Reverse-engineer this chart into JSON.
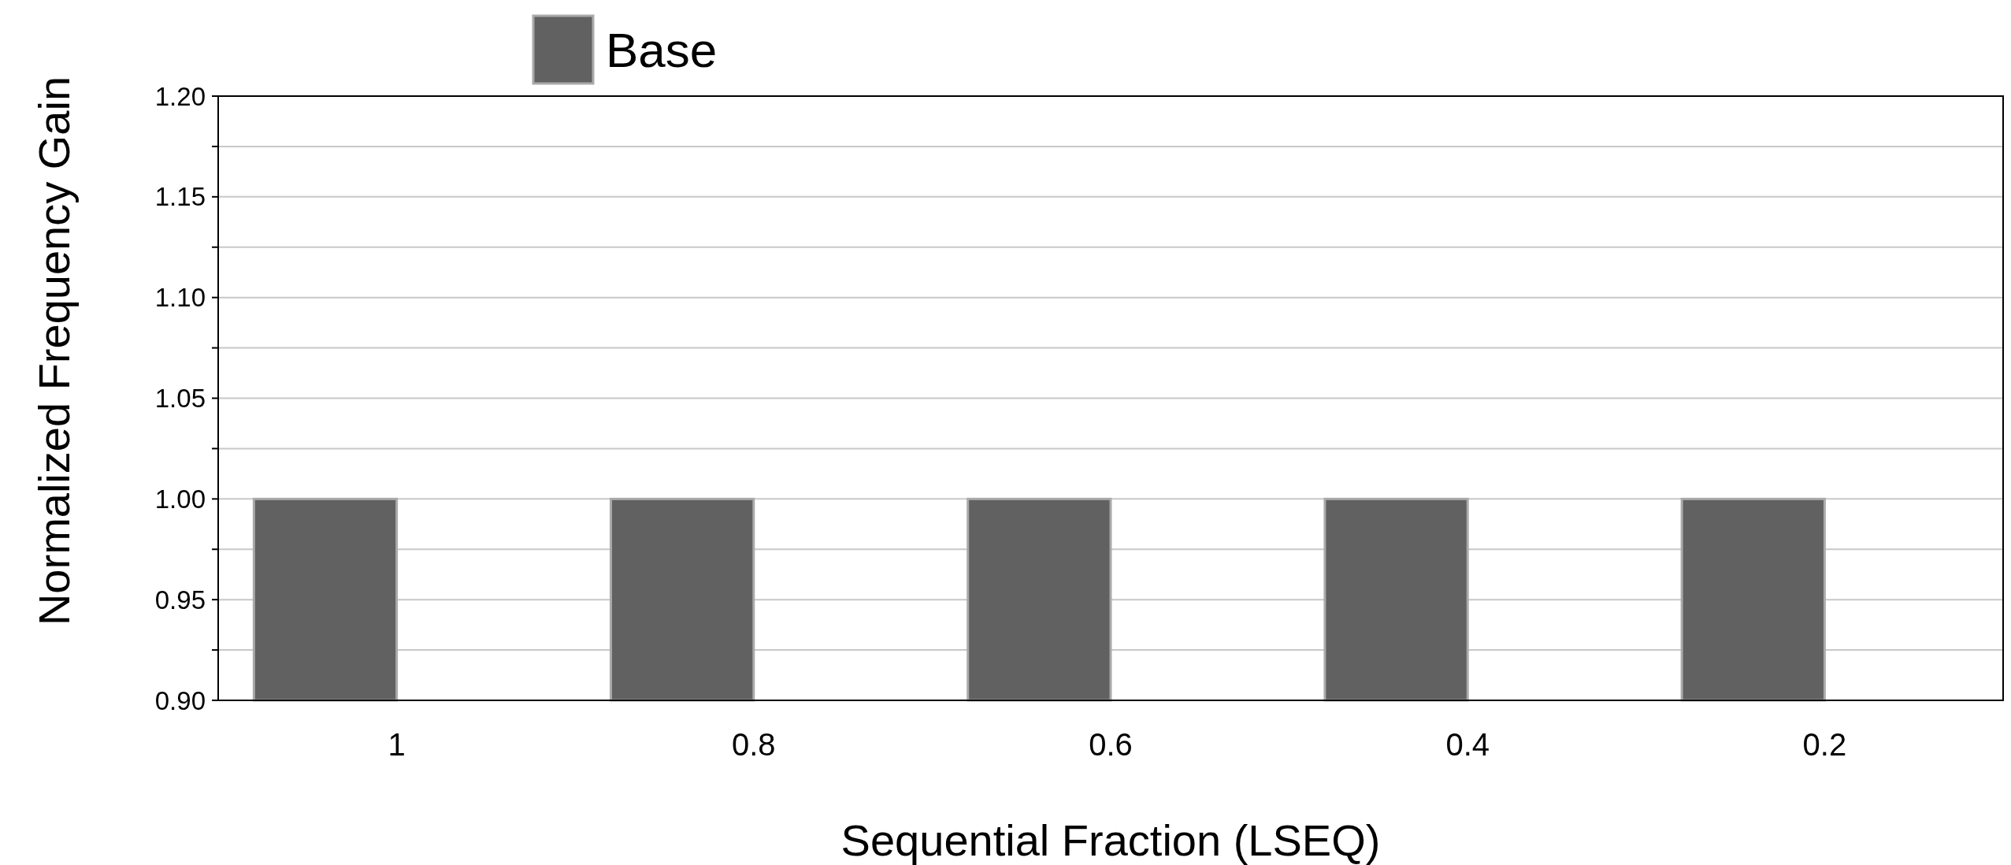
{
  "chart_data": {
    "type": "bar",
    "xlabel": "Sequential Fraction (LSEQ)",
    "ylabel": "Normalized Frequency Gain",
    "categories": [
      "1",
      "0.8",
      "0.6",
      "0.4",
      "0.2"
    ],
    "series": [
      {
        "name": "Base",
        "color": "#616161",
        "values": [
          1.0,
          1.0,
          1.0,
          1.0,
          1.0
        ]
      }
    ],
    "ylim": [
      0.9,
      1.2
    ],
    "yticks": [
      {
        "value": 0.9,
        "label": "0.90"
      },
      {
        "value": 0.925,
        "label": null
      },
      {
        "value": 0.95,
        "label": "0.95"
      },
      {
        "value": 0.975,
        "label": null
      },
      {
        "value": 1.0,
        "label": "1.00"
      },
      {
        "value": 1.025,
        "label": null
      },
      {
        "value": 1.05,
        "label": "1.05"
      },
      {
        "value": 1.075,
        "label": null
      },
      {
        "value": 1.1,
        "label": "1.10"
      },
      {
        "value": 1.125,
        "label": null
      },
      {
        "value": 1.15,
        "label": "1.15"
      },
      {
        "value": 1.175,
        "label": null
      },
      {
        "value": 1.2,
        "label": "1.20"
      }
    ],
    "grid": "y",
    "legend": "top left"
  }
}
